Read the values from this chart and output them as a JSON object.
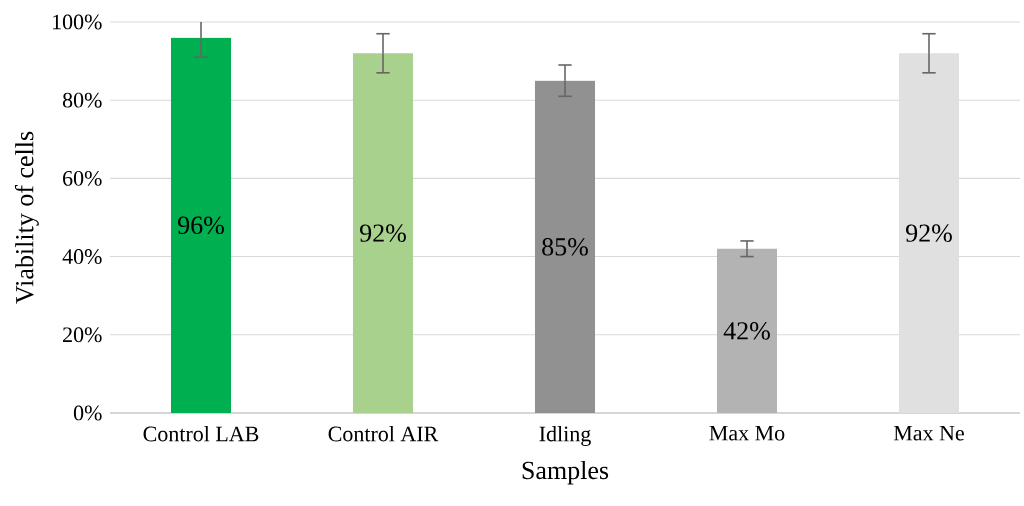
{
  "chart_data": {
    "type": "bar",
    "categories": [
      "Control LAB",
      "Control AIR",
      "Idling",
      "Max Mo",
      "Max Ne"
    ],
    "values": [
      96,
      92,
      85,
      42,
      92
    ],
    "colors": [
      "#00b050",
      "#a9d18e",
      "#919191",
      "#b3b3b3",
      "#e0e0e0"
    ],
    "errors": [
      5,
      5,
      4,
      2,
      5
    ],
    "value_labels": [
      "96%",
      "92%",
      "85%",
      "42%",
      "92%"
    ],
    "xlabel": "Samples",
    "ylabel": "Viability of cells",
    "ylim": [
      0,
      100
    ],
    "yticks": [
      {
        "value": 0,
        "label": "0%"
      },
      {
        "value": 20,
        "label": "20%"
      },
      {
        "value": 40,
        "label": "40%"
      },
      {
        "value": 60,
        "label": "60%"
      },
      {
        "value": 80,
        "label": "80%"
      },
      {
        "value": 100,
        "label": "100%"
      }
    ],
    "grid": "y"
  }
}
